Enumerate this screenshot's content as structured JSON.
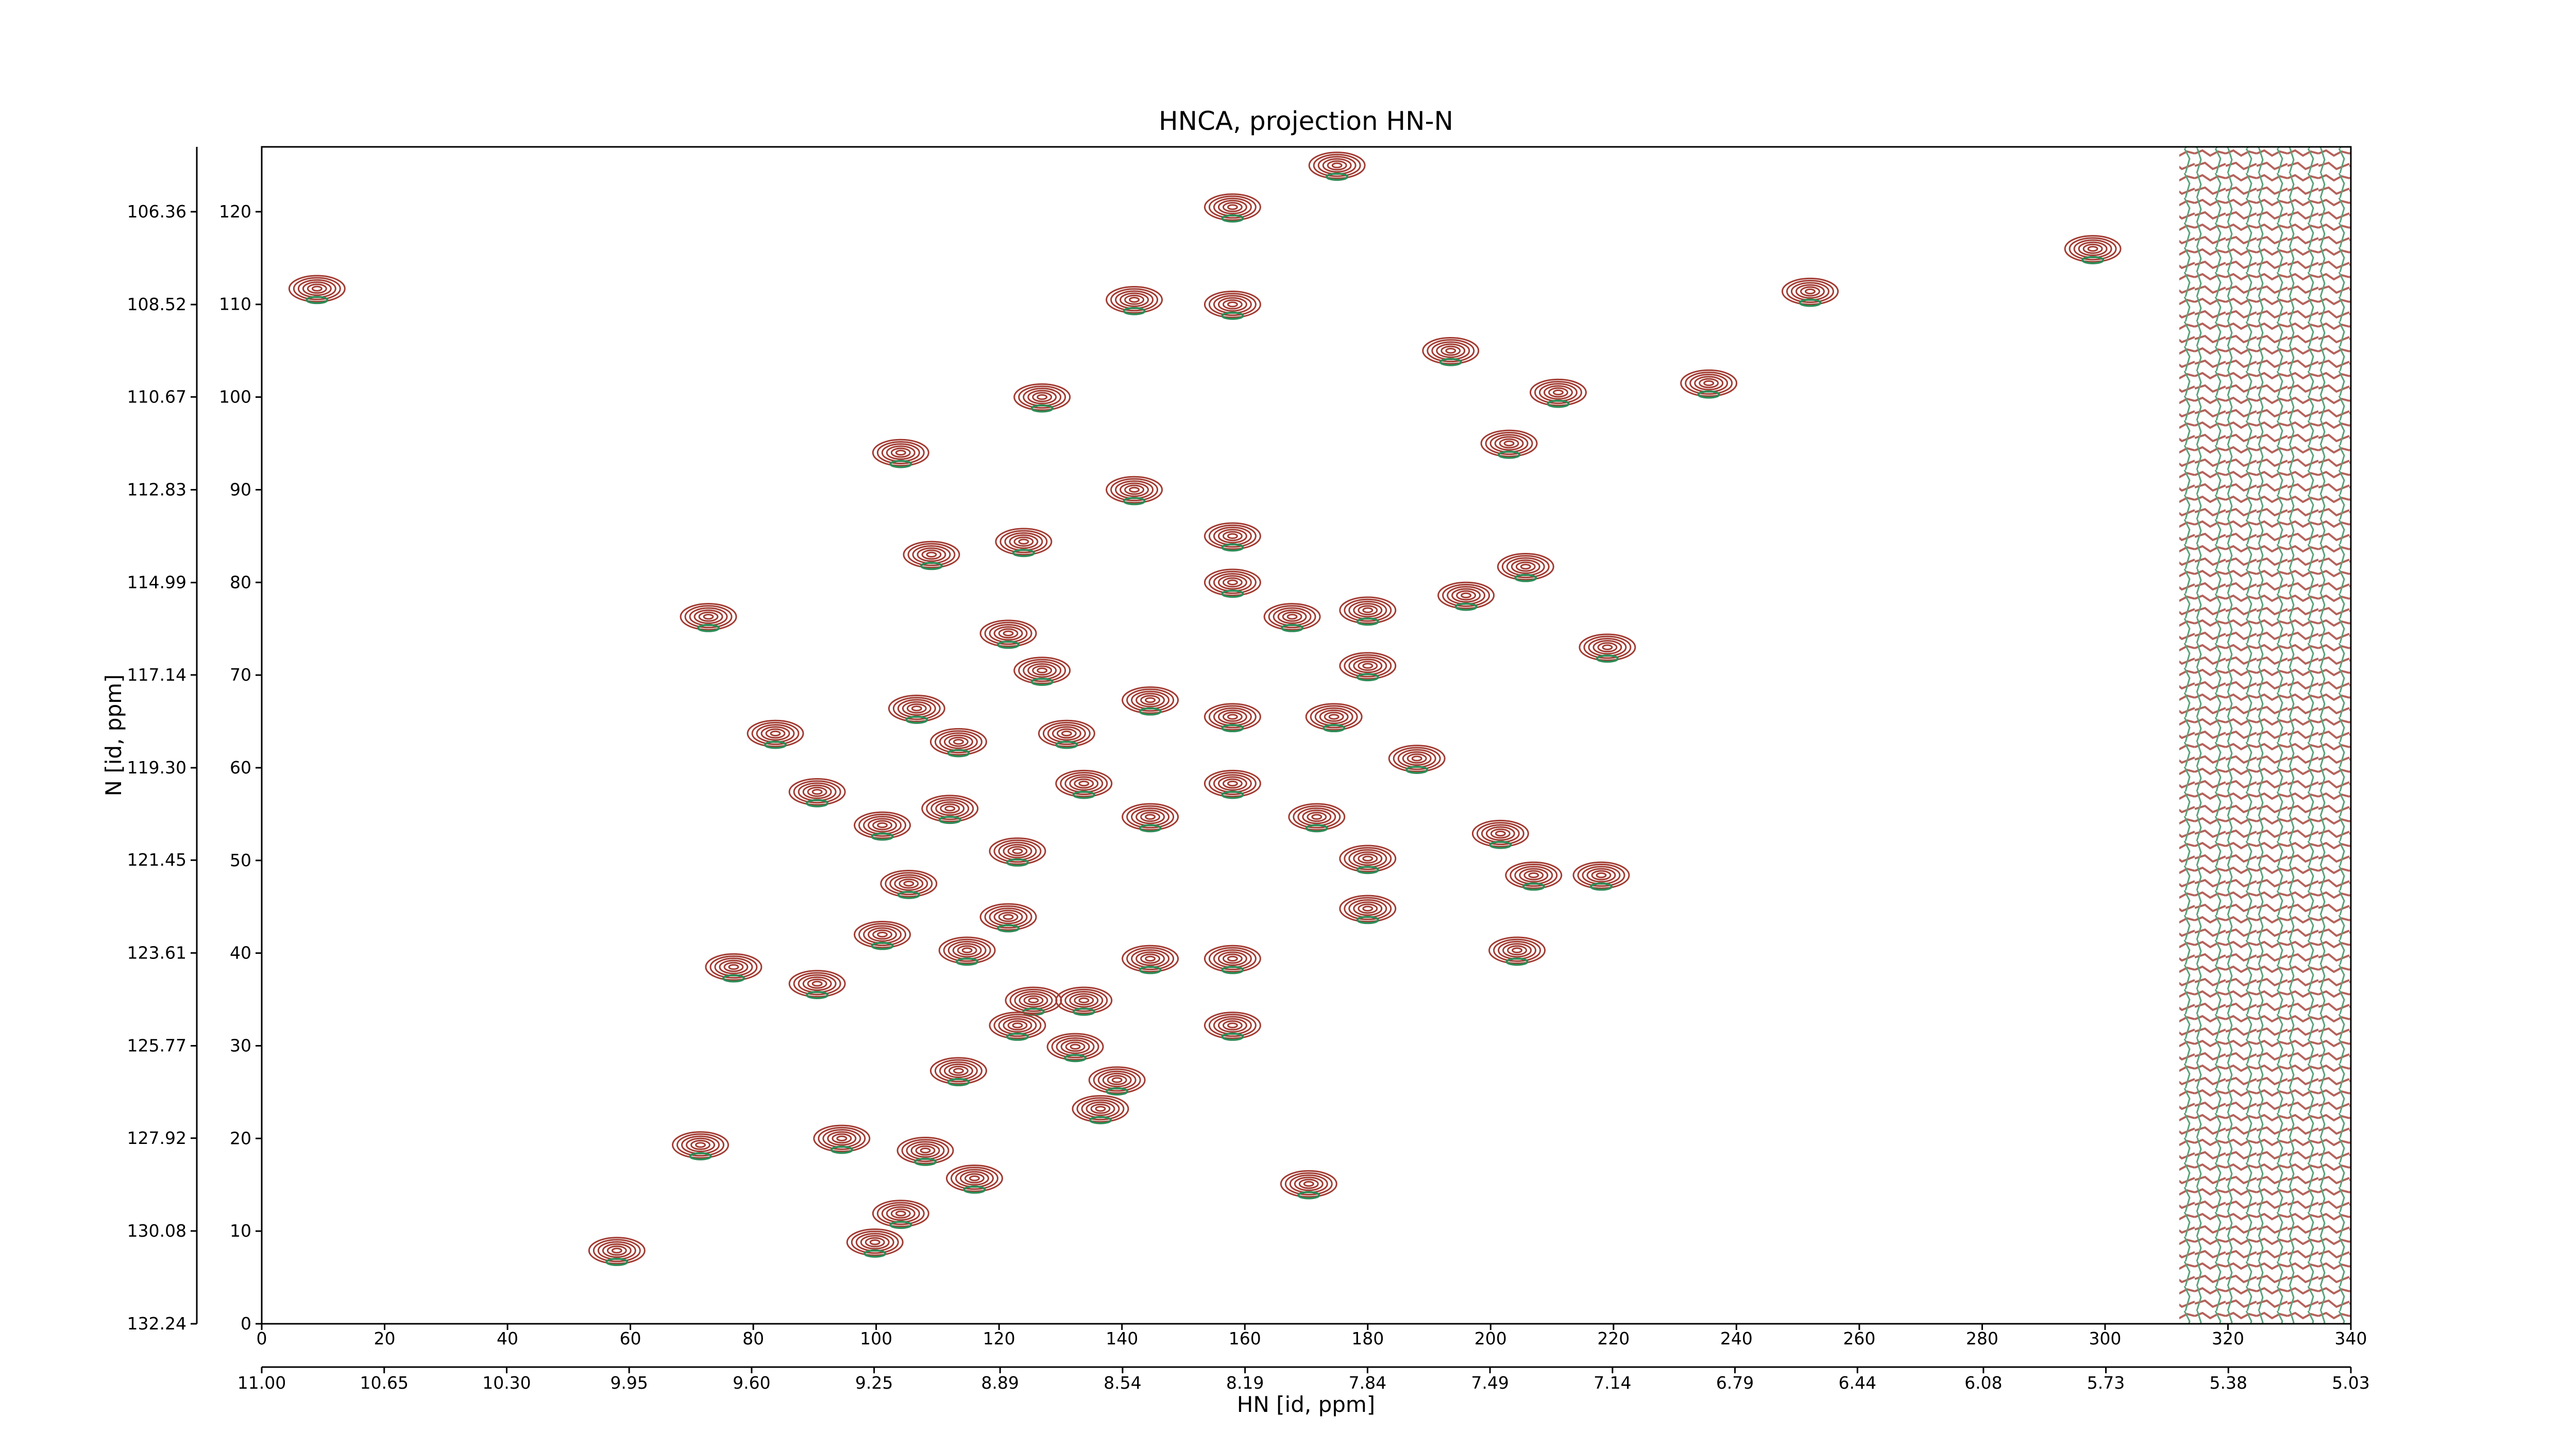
{
  "chart_data": {
    "type": "contour",
    "title": "HNCA, projection HN-N",
    "xlabel": "HN [id, ppm]",
    "ylabel": "N [id, ppm]",
    "xlim": [
      0,
      340
    ],
    "xticks": [
      0,
      20,
      40,
      60,
      80,
      100,
      120,
      140,
      160,
      180,
      200,
      220,
      240,
      260,
      280,
      300,
      320,
      340
    ],
    "ylim": [
      0,
      127
    ],
    "yticks": [
      0,
      10,
      20,
      30,
      40,
      50,
      60,
      70,
      80,
      90,
      100,
      110,
      120
    ],
    "x2lim": [
      11,
      5.03
    ],
    "x2ticks": [
      {
        "value": 11,
        "label": "11.00"
      },
      10.65,
      {
        "value": 10.3,
        "label": "10.30"
      },
      9.95,
      {
        "value": 9.6,
        "label": "9.60"
      },
      9.25,
      8.89,
      8.54,
      8.19,
      7.84,
      7.49,
      7.14,
      6.79,
      6.44,
      6.08,
      5.73,
      5.38,
      5.03
    ],
    "y2lim": [
      132.24,
      104.85
    ],
    "y2ticks": [
      106.36,
      108.52,
      110.67,
      112.83,
      114.99,
      117.14,
      {
        "value": 119.3,
        "label": "119.30"
      },
      121.45,
      123.61,
      125.77,
      127.92,
      130.08,
      132.24
    ],
    "color": "#a23b32",
    "negative_color": "#2e8b57",
    "x": [
      9,
      158,
      175,
      142,
      158,
      193.5,
      211,
      235.5,
      252,
      298,
      127,
      104,
      203,
      142,
      109,
      124,
      158,
      158,
      196,
      205.7,
      72.7,
      121.5,
      127,
      167.7,
      180,
      180,
      219,
      83.6,
      106.6,
      113.4,
      131,
      144.6,
      158,
      174.5,
      188,
      90.4,
      101,
      112,
      123,
      133.8,
      144.6,
      158,
      171.7,
      180,
      201.6,
      207,
      218,
      105.3,
      101,
      114.8,
      121.5,
      76.8,
      90.4,
      144.6,
      158,
      180,
      204.3,
      125.6,
      133.8,
      123,
      158,
      132.4,
      139.2,
      113.4,
      136.5,
      71.4,
      94.4,
      108,
      116,
      170.4,
      104,
      99.8,
      57.8
    ],
    "values": [
      111.7,
      120.5,
      125,
      110.5,
      110,
      105,
      100.5,
      101.5,
      111.4,
      116,
      100,
      94,
      95,
      90,
      83,
      84.4,
      85,
      80,
      78.6,
      81.7,
      76.3,
      74.5,
      70.5,
      76.3,
      77,
      71,
      73,
      63.7,
      66.4,
      62.8,
      63.7,
      67.3,
      65.5,
      65.5,
      61,
      57.4,
      53.8,
      55.6,
      51,
      58.3,
      54.7,
      58.3,
      54.7,
      50.2,
      52.9,
      48.4,
      48.4,
      47.5,
      42,
      40.3,
      43.9,
      38.5,
      36.7,
      39.4,
      39.4,
      44.8,
      40.3,
      34.9,
      34.9,
      32.2,
      32.2,
      29.9,
      26.3,
      27.3,
      23.2,
      19.3,
      20,
      18.7,
      15.7,
      15.1,
      11.9,
      8.8,
      7.9
    ]
  }
}
